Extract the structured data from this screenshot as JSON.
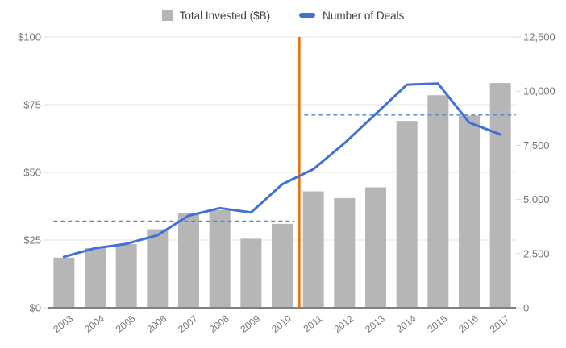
{
  "legend": {
    "bar_label": "Total Invested ($B)",
    "line_label": "Number of Deals"
  },
  "chart_data": {
    "type": "combo-bar-line",
    "title": "",
    "categories": [
      "2003",
      "2004",
      "2005",
      "2006",
      "2007",
      "2008",
      "2009",
      "2010",
      "2011",
      "2012",
      "2013",
      "2014",
      "2015",
      "2016",
      "2017"
    ],
    "series": [
      {
        "name": "Total Invested ($B)",
        "type": "bar",
        "axis": "left",
        "values": [
          18.5,
          22,
          23.5,
          29,
          35,
          36,
          25.5,
          31,
          43,
          40.5,
          44.5,
          69,
          78.5,
          71,
          83
        ]
      },
      {
        "name": "Number of Deals",
        "type": "line",
        "axis": "right",
        "values": [
          2350,
          2750,
          2950,
          3350,
          4250,
          4600,
          4400,
          5700,
          6400,
          7600,
          8950,
          10300,
          10350,
          8550,
          8000
        ]
      }
    ],
    "left_axis": {
      "min": 0,
      "max": 100,
      "ticks": [
        "$0",
        "$25",
        "$50",
        "$75",
        "$100"
      ]
    },
    "right_axis": {
      "min": 0,
      "max": 12500,
      "ticks": [
        "0",
        "2,500",
        "5,000",
        "7,500",
        "10,000",
        "12,500"
      ]
    },
    "grid": "horizontal",
    "legend_position": "top-center",
    "annotations": {
      "vertical_divider": {
        "between": [
          "2010",
          "2011"
        ],
        "color": "#e8710a"
      },
      "avg_lines": [
        {
          "name": "avg-deals-2003-2010",
          "value_right_axis": 4000,
          "span": [
            "2003",
            "2010"
          ],
          "style": "dashed"
        },
        {
          "name": "avg-deals-2011-2017",
          "value_right_axis": 8900,
          "span": [
            "2011",
            "2017"
          ],
          "style": "dashed"
        }
      ]
    },
    "colors": {
      "bar": "#b6b6b6",
      "line": "#4170d6",
      "dashed": "#5489cb",
      "divider": "#e8710a",
      "grid": "#e3e3e3",
      "baseline": "#808080",
      "tick": "#d9d9d9",
      "axis_text": "#757575",
      "legend_text": "#3c4043",
      "background": "#ffffff"
    }
  }
}
